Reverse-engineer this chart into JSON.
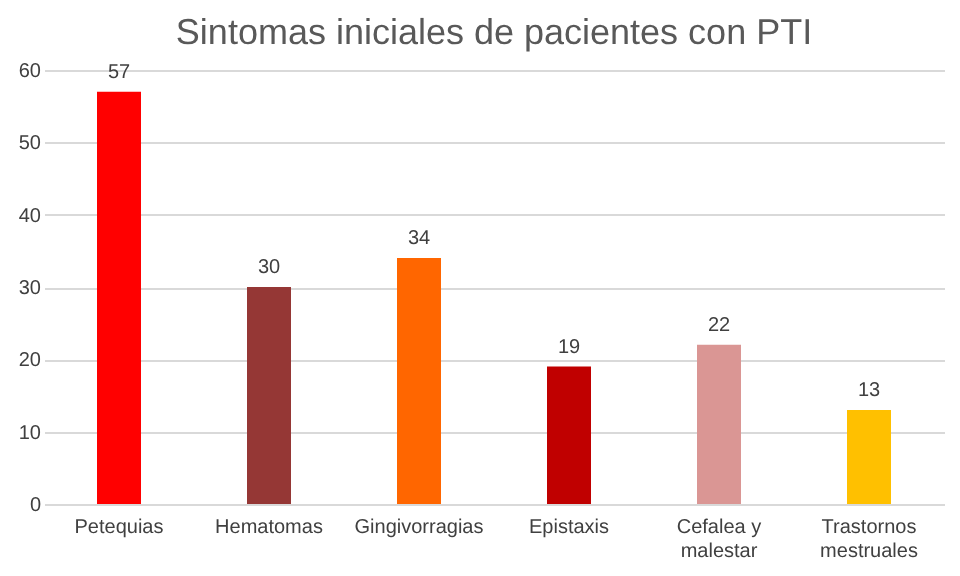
{
  "chart_data": {
    "type": "bar",
    "title": "Sintomas iniciales de pacientes con PTI",
    "categories": [
      "Petequias",
      "Hematomas",
      "Gingivorragias",
      "Epistaxis",
      "Cefalea y\nmalestar",
      "Trastornos\nmestruales"
    ],
    "values": [
      57,
      30,
      34,
      19,
      22,
      13
    ],
    "colors": [
      "#ff0000",
      "#953735",
      "#ff6600",
      "#c00000",
      "#da9694",
      "#ffc000"
    ],
    "ylim": [
      0,
      60
    ],
    "yticks": [
      0,
      10,
      20,
      30,
      40,
      50,
      60
    ],
    "grid": "y",
    "data_labels": true
  }
}
